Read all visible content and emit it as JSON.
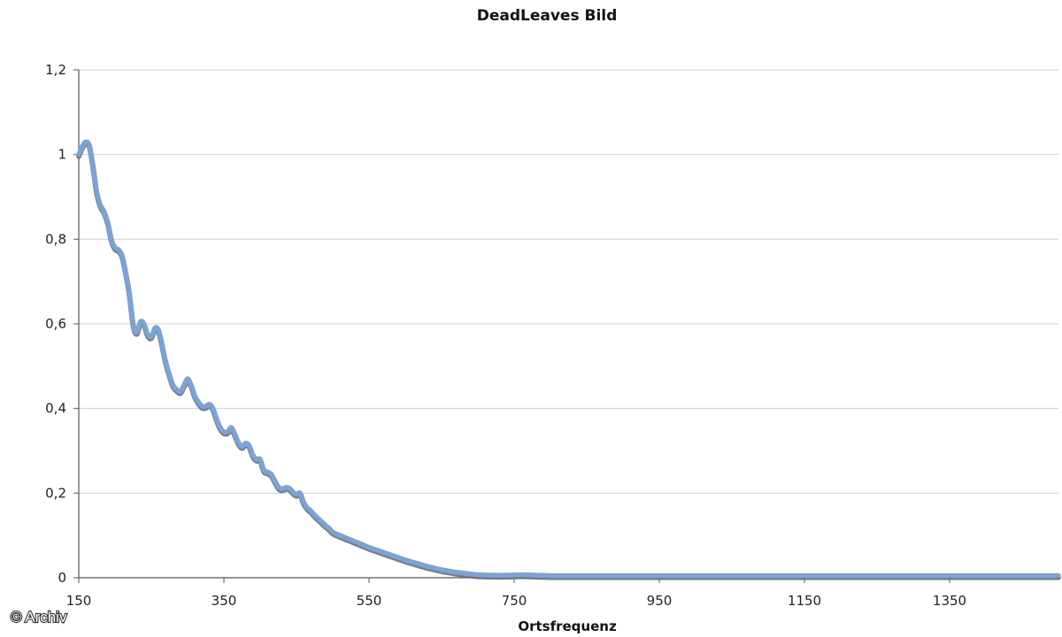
{
  "chart_data": {
    "type": "line",
    "title": "DeadLeaves Bild",
    "xlabel": "Ortsfrequenz",
    "ylabel": "",
    "xlim": [
      150,
      1500
    ],
    "ylim": [
      0,
      1.2
    ],
    "x_ticks": [
      "150",
      "350",
      "550",
      "750",
      "950",
      "1150",
      "1350"
    ],
    "x_tick_values": [
      150,
      350,
      550,
      750,
      950,
      1150,
      1350
    ],
    "y_ticks": [
      "0",
      "0,2",
      "0,4",
      "0,6",
      "0,8",
      "1",
      "1,2"
    ],
    "y_tick_values": [
      0,
      0.2,
      0.4,
      0.6,
      0.8,
      1.0,
      1.2
    ],
    "grid": "horizontal",
    "legend": "none",
    "series_color": "#7ba3d3",
    "series_shadow_color": "#6f6f6f",
    "series": [
      {
        "x": [
          150,
          155,
          160,
          165,
          170,
          175,
          180,
          185,
          190,
          195,
          200,
          205,
          210,
          215,
          220,
          225,
          230,
          235,
          240,
          245,
          250,
          255,
          260,
          265,
          270,
          275,
          280,
          285,
          290,
          295,
          300,
          305,
          310,
          315,
          320,
          325,
          330,
          335,
          340,
          345,
          350,
          355,
          360,
          365,
          370,
          375,
          380,
          385,
          390,
          395,
          400,
          405,
          410,
          415,
          420,
          425,
          430,
          435,
          440,
          445,
          450,
          455,
          460,
          465,
          470,
          475,
          480,
          485,
          490,
          495,
          500,
          510,
          520,
          530,
          540,
          550,
          560,
          570,
          580,
          590,
          600,
          610,
          620,
          630,
          640,
          650,
          660,
          670,
          680,
          690,
          700,
          720,
          740,
          760,
          780,
          800,
          820,
          840,
          860,
          880,
          900,
          920,
          940,
          960,
          980,
          1000,
          1050,
          1100,
          1150,
          1200,
          1250,
          1300,
          1350,
          1400,
          1450,
          1500
        ],
        "values": [
          1.0,
          1.02,
          1.03,
          1.02,
          0.97,
          0.91,
          0.88,
          0.865,
          0.84,
          0.8,
          0.78,
          0.775,
          0.76,
          0.72,
          0.67,
          0.6,
          0.58,
          0.605,
          0.6,
          0.575,
          0.57,
          0.59,
          0.585,
          0.55,
          0.51,
          0.48,
          0.455,
          0.445,
          0.44,
          0.455,
          0.47,
          0.455,
          0.43,
          0.415,
          0.405,
          0.405,
          0.41,
          0.4,
          0.375,
          0.355,
          0.345,
          0.345,
          0.355,
          0.34,
          0.32,
          0.31,
          0.318,
          0.312,
          0.29,
          0.28,
          0.28,
          0.255,
          0.25,
          0.245,
          0.23,
          0.215,
          0.21,
          0.213,
          0.212,
          0.203,
          0.197,
          0.2,
          0.178,
          0.165,
          0.158,
          0.148,
          0.14,
          0.132,
          0.124,
          0.117,
          0.108,
          0.1,
          0.093,
          0.086,
          0.079,
          0.072,
          0.066,
          0.06,
          0.054,
          0.048,
          0.042,
          0.037,
          0.032,
          0.027,
          0.023,
          0.019,
          0.016,
          0.013,
          0.011,
          0.009,
          0.007,
          0.006,
          0.006,
          0.007,
          0.006,
          0.005,
          0.005,
          0.005,
          0.005,
          0.005,
          0.005,
          0.005,
          0.005,
          0.005,
          0.005,
          0.005,
          0.005,
          0.005,
          0.005,
          0.005,
          0.005,
          0.005,
          0.005,
          0.005,
          0.005,
          0.005
        ]
      }
    ]
  },
  "watermark": "© Archiv"
}
